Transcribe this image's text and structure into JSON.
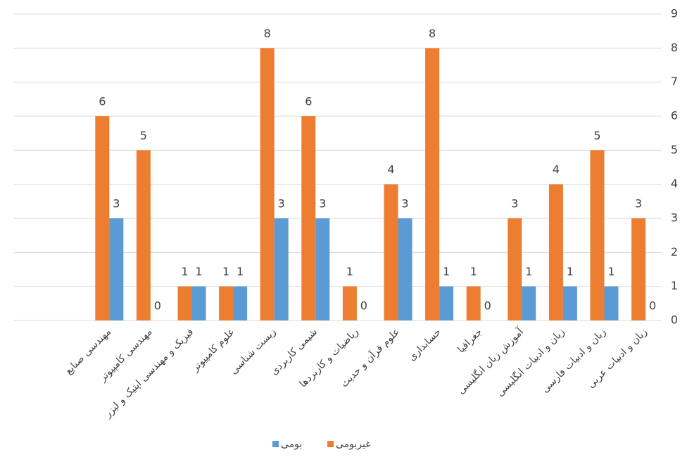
{
  "chart_data": {
    "type": "bar",
    "categories": [
      "مهندسی صنایع",
      "مهندسی کامپیوتر",
      "فیزیک و مهندسی اپتیک و لیزر",
      "علوم کامپیوتر",
      "زیست شناسی",
      "شیمی کاربردی",
      "ریاضیات و کاربردها",
      "علوم قرآن و حدیث",
      "حسابداری",
      "جغرافیا",
      "آموزش زبان انگلیسی",
      "زبان و ادبیات انگلیسی",
      "زبان و ادبیات فارسی",
      "زبان و ادبیات عربی"
    ],
    "series": [
      {
        "name": "غیربومی",
        "color": "#ed7d31",
        "values": [
          6,
          5,
          1,
          1,
          8,
          6,
          1,
          4,
          8,
          1,
          3,
          4,
          5,
          3
        ]
      },
      {
        "name": "بومی",
        "color": "#5b9bd5",
        "values": [
          3,
          0,
          1,
          1,
          3,
          3,
          0,
          3,
          1,
          0,
          1,
          1,
          1,
          0
        ]
      }
    ],
    "ylim": [
      0,
      9
    ],
    "yticks": [
      0,
      1,
      2,
      3,
      4,
      5,
      6,
      7,
      8,
      9
    ],
    "grid": true,
    "legend": "bottom"
  }
}
